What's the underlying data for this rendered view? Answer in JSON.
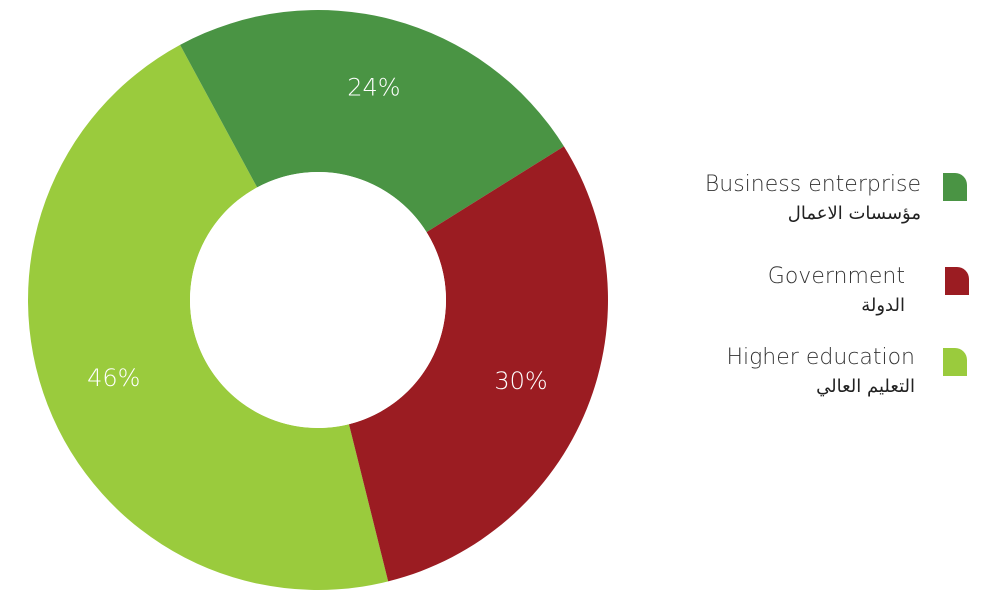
{
  "chart_data": {
    "type": "pie",
    "variant": "donut",
    "slices": [
      {
        "name": "Higher education",
        "name_ar": "التعليم العالي",
        "value": 46,
        "label": "46%",
        "color": "#9acb3d"
      },
      {
        "name": "Business enterprise",
        "name_ar": "مؤسسات الاعمال",
        "value": 24,
        "label": "24%",
        "color": "#4a9444"
      },
      {
        "name": "Government",
        "name_ar": "الدولة",
        "value": 30,
        "label": "30%",
        "color": "#9b1c22"
      }
    ],
    "legend_placement": "right",
    "legend": [
      {
        "en": "Business enterprise",
        "ar": "مؤسسات الاعمال",
        "color": "#4a9444"
      },
      {
        "en": "Government",
        "ar": "الدولة",
        "color": "#9b1c22"
      },
      {
        "en": "Higher education",
        "ar": "التعليم العالي",
        "color": "#9acb3d"
      }
    ]
  }
}
